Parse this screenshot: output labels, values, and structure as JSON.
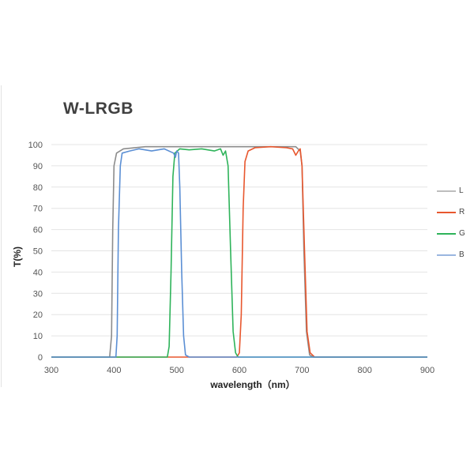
{
  "chart_data": {
    "type": "line",
    "title": "W-LRGB",
    "xlabel": "wavelength（nm）",
    "ylabel": "T(%)",
    "xlim": [
      300,
      900
    ],
    "ylim": [
      0,
      100
    ],
    "x_ticks": [
      300,
      400,
      500,
      600,
      700,
      800,
      900
    ],
    "y_ticks": [
      0,
      10,
      20,
      30,
      40,
      50,
      60,
      70,
      80,
      90,
      100
    ],
    "grid": "horizontal",
    "legend_position": "right",
    "series": [
      {
        "name": "L",
        "color": "#8c8c8c",
        "points": [
          [
            300,
            0
          ],
          [
            393,
            0
          ],
          [
            396,
            10
          ],
          [
            398,
            60
          ],
          [
            400,
            90
          ],
          [
            404,
            96
          ],
          [
            415,
            98
          ],
          [
            450,
            99
          ],
          [
            500,
            99
          ],
          [
            550,
            99
          ],
          [
            600,
            99
          ],
          [
            650,
            99
          ],
          [
            690,
            99
          ],
          [
            697,
            97
          ],
          [
            700,
            90
          ],
          [
            703,
            50
          ],
          [
            707,
            12
          ],
          [
            712,
            1
          ],
          [
            718,
            0
          ],
          [
            900,
            0
          ]
        ]
      },
      {
        "name": "R",
        "color": "#e8572e",
        "points": [
          [
            300,
            0
          ],
          [
            596,
            0
          ],
          [
            600,
            2
          ],
          [
            603,
            20
          ],
          [
            606,
            70
          ],
          [
            609,
            92
          ],
          [
            614,
            97
          ],
          [
            625,
            98.5
          ],
          [
            650,
            99
          ],
          [
            675,
            98.5
          ],
          [
            685,
            98
          ],
          [
            690,
            95
          ],
          [
            694,
            97
          ],
          [
            697,
            98
          ],
          [
            700,
            90
          ],
          [
            704,
            50
          ],
          [
            708,
            12
          ],
          [
            713,
            2
          ],
          [
            720,
            0
          ],
          [
            900,
            0
          ]
        ]
      },
      {
        "name": "G",
        "color": "#2eb35a",
        "points": [
          [
            300,
            0
          ],
          [
            485,
            0
          ],
          [
            488,
            5
          ],
          [
            491,
            40
          ],
          [
            494,
            85
          ],
          [
            497,
            96
          ],
          [
            505,
            98
          ],
          [
            520,
            97.5
          ],
          [
            540,
            98
          ],
          [
            560,
            97
          ],
          [
            570,
            98
          ],
          [
            574,
            95
          ],
          [
            578,
            97
          ],
          [
            582,
            90
          ],
          [
            586,
            50
          ],
          [
            590,
            12
          ],
          [
            594,
            2
          ],
          [
            598,
            0
          ],
          [
            900,
            0
          ]
        ]
      },
      {
        "name": "B",
        "color": "#5b8fd4",
        "points": [
          [
            300,
            0
          ],
          [
            403,
            0
          ],
          [
            405,
            10
          ],
          [
            407,
            60
          ],
          [
            410,
            90
          ],
          [
            413,
            96
          ],
          [
            425,
            97
          ],
          [
            440,
            98
          ],
          [
            460,
            97
          ],
          [
            480,
            98
          ],
          [
            495,
            96
          ],
          [
            498,
            94
          ],
          [
            500,
            97
          ],
          [
            503,
            96
          ],
          [
            505,
            80
          ],
          [
            508,
            40
          ],
          [
            511,
            10
          ],
          [
            514,
            1
          ],
          [
            520,
            0
          ],
          [
            900,
            0
          ]
        ]
      }
    ]
  },
  "legend": [
    {
      "label": "L",
      "color": "#8c8c8c"
    },
    {
      "label": "R",
      "color": "#e8572e"
    },
    {
      "label": "G",
      "color": "#2eb35a"
    },
    {
      "label": "B",
      "color": "#5b8fd4"
    }
  ]
}
